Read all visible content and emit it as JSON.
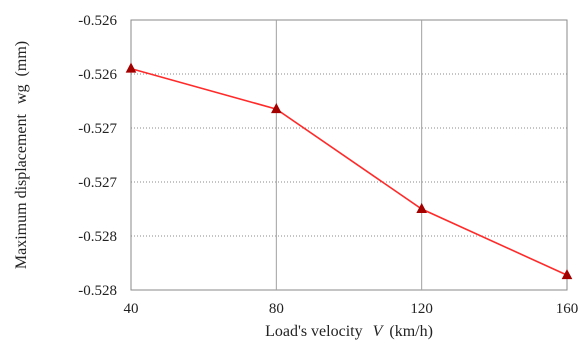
{
  "chart_data": {
    "type": "line",
    "title": "",
    "xlabel": "Load's velocity",
    "xlabel_symbol": "V",
    "xlabel_unit": "(km/h)",
    "ylabel": "Maximum displacement",
    "ylabel_symbol": "wg",
    "ylabel_unit": "(mm)",
    "x": [
      40,
      80,
      120,
      160
    ],
    "xlim": [
      40,
      160
    ],
    "ylim": [
      -0.528,
      -0.526
    ],
    "x_ticks": [
      "40",
      "80",
      "120",
      "160"
    ],
    "y_ticks": [
      "-0.526",
      "-0.526",
      "-0.527",
      "-0.527",
      "-0.528",
      "-0.528"
    ],
    "y_tick_values": [
      -0.526,
      -0.5264,
      -0.5268,
      -0.5272,
      -0.5276,
      -0.528
    ],
    "grid": true,
    "legend": "none",
    "series": [
      {
        "values": [
          -0.52636,
          -0.52666,
          -0.5274,
          -0.52789
        ],
        "color": "#ff2a2a",
        "marker": "triangle",
        "marker_color": "#a30000"
      }
    ]
  }
}
